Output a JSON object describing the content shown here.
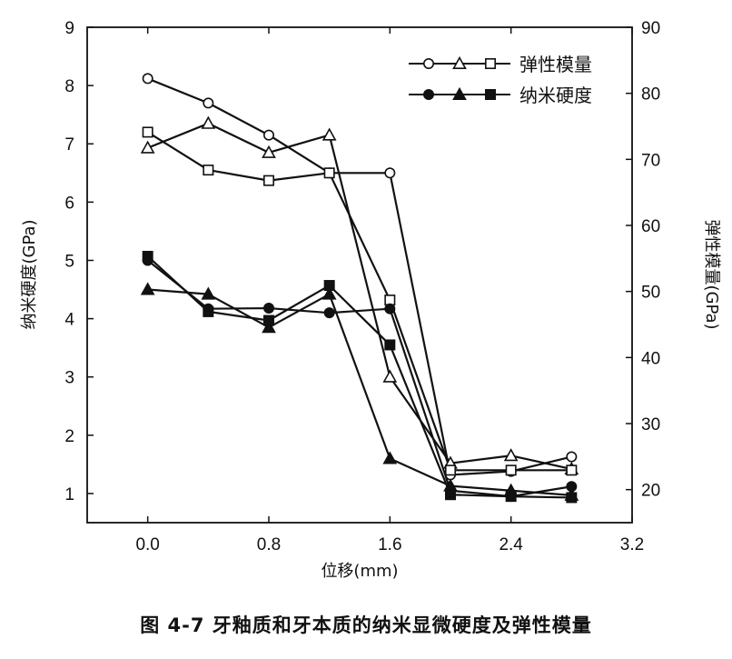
{
  "chart_data": {
    "type": "line",
    "title": "",
    "caption": "图 4-7    牙釉质和牙本质的纳米显微硬度及弹性模量",
    "xlabel": "位移(mm)",
    "ylabel_left": "纳米硬度(GPa)",
    "ylabel_right": "弹性模量(GPa)",
    "xlim": [
      -0.4,
      3.2
    ],
    "ylim_left": [
      0.5,
      9
    ],
    "ylim_right": [
      15,
      90
    ],
    "x_ticks": [
      0.0,
      0.8,
      1.6,
      2.4,
      3.2
    ],
    "x_tick_labels": [
      "0.0",
      "0.8",
      "1.6",
      "2.4",
      "3.2"
    ],
    "y_left_ticks": [
      1,
      2,
      3,
      4,
      5,
      6,
      7,
      8,
      9
    ],
    "y_left_tick_labels": [
      "1",
      "2",
      "3",
      "4",
      "5",
      "6",
      "7",
      "8",
      "9"
    ],
    "y_right_ticks": [
      20,
      30,
      40,
      50,
      60,
      70,
      80,
      90
    ],
    "y_right_tick_labels": [
      "20",
      "30",
      "40",
      "50",
      "60",
      "70",
      "80",
      "90"
    ],
    "x": [
      0.0,
      0.4,
      0.8,
      1.2,
      1.6,
      2.0,
      2.4,
      2.8
    ],
    "legend": [
      {
        "label": "弹性模量",
        "markers": [
          "circle-open",
          "triangle-open",
          "square-open"
        ]
      },
      {
        "label": "纳米硬度",
        "markers": [
          "circle-filled",
          "triangle-filled",
          "square-filled"
        ]
      }
    ],
    "series": [
      {
        "name": "弹性模量 (circle)",
        "axis": "left",
        "marker": "circle-open",
        "values": [
          8.12,
          7.7,
          7.15,
          6.5,
          6.5,
          1.32,
          1.38,
          1.63
        ]
      },
      {
        "name": "弹性模量 (triangle)",
        "axis": "left",
        "marker": "triangle-open",
        "values": [
          6.93,
          7.35,
          6.85,
          7.15,
          3.0,
          1.52,
          1.65,
          1.42
        ]
      },
      {
        "name": "弹性模量 (square)",
        "axis": "left",
        "marker": "square-open",
        "values": [
          7.2,
          6.55,
          6.37,
          6.5,
          4.32,
          1.4,
          1.4,
          1.4
        ]
      },
      {
        "name": "纳米硬度 (circle)",
        "axis": "left",
        "marker": "circle-filled",
        "values": [
          5.0,
          4.17,
          4.18,
          4.1,
          4.17,
          1.05,
          0.95,
          1.12
        ]
      },
      {
        "name": "纳米硬度 (triangle)",
        "axis": "left",
        "marker": "triangle-filled",
        "values": [
          4.5,
          4.42,
          3.85,
          4.42,
          1.6,
          1.13,
          1.05,
          0.97
        ]
      },
      {
        "name": "纳米硬度 (square)",
        "axis": "left",
        "marker": "square-filled",
        "values": [
          5.07,
          4.12,
          3.97,
          4.57,
          3.55,
          0.98,
          0.95,
          0.93
        ]
      }
    ]
  }
}
